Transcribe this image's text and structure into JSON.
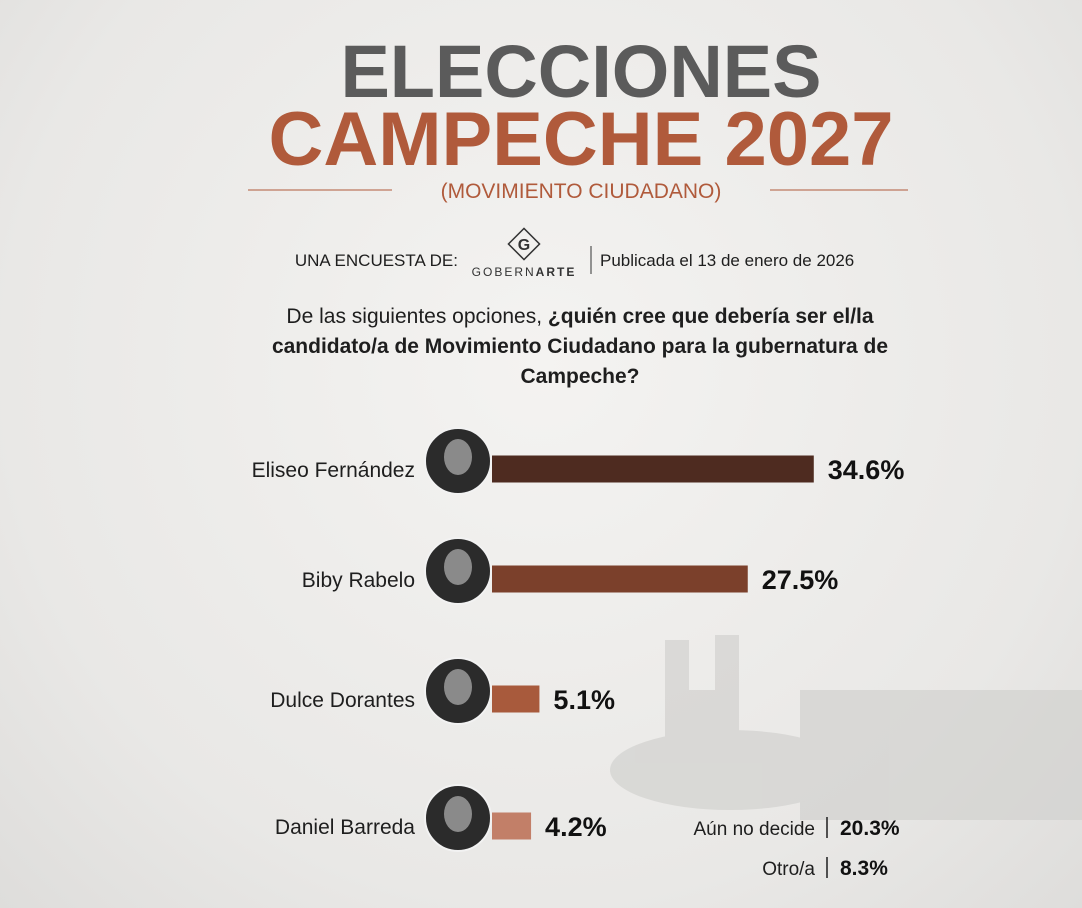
{
  "header": {
    "title_line1": "ELECCIONES",
    "title_line2": "CAMPECHE 2027",
    "subtitle": "(MOVIMIENTO CIUDADANO)",
    "survey_by": "UNA ENCUESTA DE:",
    "logo_letter": "G",
    "pollster_part1": "GOBERN",
    "pollster_part2": "ARTE",
    "published": "Publicada el 13 de enero de 2026"
  },
  "question": {
    "intro": "De las siguientes opciones, ",
    "emphasis": "¿quién cree que debería ser el/la candidato/a de Movimiento Ciudadano para la gubernatura de Campeche?"
  },
  "chart_data": {
    "type": "bar",
    "categories": [
      "Eliseo Fernández",
      "Biby Rabelo",
      "Dulce Dorantes",
      "Daniel Barreda"
    ],
    "values": [
      34.6,
      27.5,
      5.1,
      4.2
    ],
    "value_labels": [
      "34.6%",
      "27.5%",
      "5.1%",
      "4.2%"
    ],
    "colors": [
      "#4e2b20",
      "#7b402b",
      "#a85a3c",
      "#c27f68"
    ],
    "other_responses": [
      {
        "label": "Aún no decide",
        "value": 20.3,
        "value_label": "20.3%"
      },
      {
        "label": "Otro/a",
        "value": 8.3,
        "value_label": "8.3%"
      }
    ]
  }
}
